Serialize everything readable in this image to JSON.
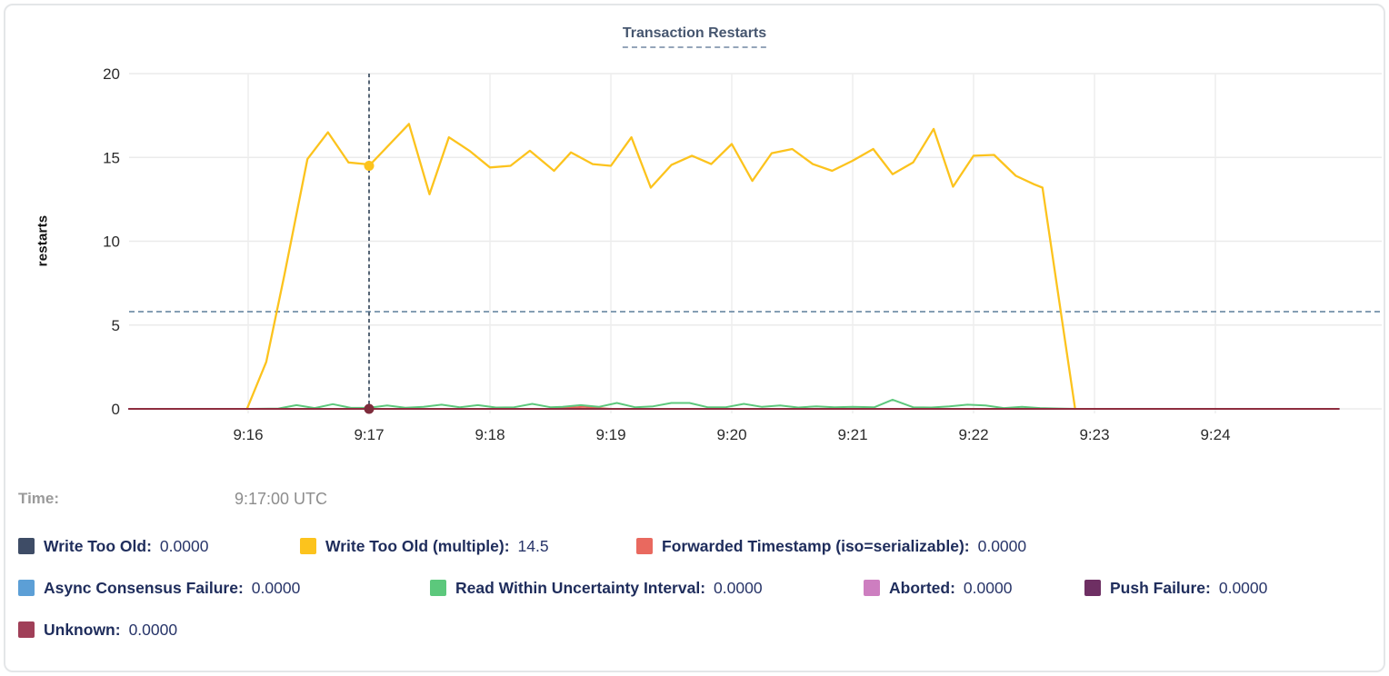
{
  "time": {
    "label": "Time:",
    "value": "9:17:00 UTC"
  },
  "chart_data": {
    "type": "line",
    "title": "Transaction Restarts",
    "ylabel": "restarts",
    "ylim": [
      0,
      20
    ],
    "yticks": [
      0,
      5,
      10,
      15,
      20
    ],
    "grid": true,
    "legend_position": "bottom",
    "x_axis": {
      "unit": "time (UTC)",
      "t_unit": "minutes after 9:15 UTC",
      "ticks": [
        {
          "t": 1,
          "label": "9:16"
        },
        {
          "t": 2,
          "label": "9:17"
        },
        {
          "t": 3,
          "label": "9:18"
        },
        {
          "t": 4,
          "label": "9:19"
        },
        {
          "t": 5,
          "label": "9:20"
        },
        {
          "t": 6,
          "label": "9:21"
        },
        {
          "t": 7,
          "label": "9:22"
        },
        {
          "t": 8,
          "label": "9:23"
        },
        {
          "t": 9,
          "label": "9:24"
        }
      ]
    },
    "threshold_line": {
      "value": 5.8,
      "orientation": "horizontal",
      "style": "dashed",
      "color": "#5d7e9c"
    },
    "crosshair": {
      "t": 2.0,
      "label": "9:17:00 UTC",
      "style": "dashed",
      "color": "#2e4156"
    },
    "hover_dots": [
      {
        "series": "Write Too Old (multiple)",
        "t": 2.0,
        "value": 14.5,
        "color": "#fcc31d"
      },
      {
        "series": "Unknown",
        "t": 2.0,
        "value": 0,
        "color": "#7e2c3c"
      }
    ],
    "series": [
      {
        "name": "Write Too Old",
        "label": "Write Too Old:",
        "value": "0.0000",
        "color": "#3e4c66",
        "row": 0,
        "points": [
          [
            0.015,
            0
          ],
          [
            10.02,
            0
          ]
        ]
      },
      {
        "name": "Write Too Old (multiple)",
        "label": "Write Too Old (multiple):",
        "value": "14.5",
        "color": "#fcc31d",
        "row": 0,
        "points": [
          [
            0.99,
            0
          ],
          [
            1.15,
            2.8
          ],
          [
            1.3,
            8.0
          ],
          [
            1.49,
            14.9
          ],
          [
            1.66,
            16.5
          ],
          [
            1.83,
            14.7
          ],
          [
            1.97,
            14.6
          ],
          [
            2.0,
            14.5
          ],
          [
            2.33,
            17.0
          ],
          [
            2.5,
            12.8
          ],
          [
            2.66,
            16.2
          ],
          [
            2.83,
            15.4
          ],
          [
            3.0,
            14.4
          ],
          [
            3.17,
            14.5
          ],
          [
            3.33,
            15.4
          ],
          [
            3.53,
            14.2
          ],
          [
            3.67,
            15.3
          ],
          [
            3.85,
            14.6
          ],
          [
            4.0,
            14.5
          ],
          [
            4.17,
            16.2
          ],
          [
            4.33,
            13.2
          ],
          [
            4.5,
            14.55
          ],
          [
            4.67,
            15.1
          ],
          [
            4.83,
            14.6
          ],
          [
            5.0,
            15.8
          ],
          [
            5.17,
            13.6
          ],
          [
            5.33,
            15.25
          ],
          [
            5.5,
            15.5
          ],
          [
            5.67,
            14.6
          ],
          [
            5.83,
            14.2
          ],
          [
            6.0,
            14.8
          ],
          [
            6.17,
            15.5
          ],
          [
            6.33,
            14.0
          ],
          [
            6.5,
            14.7
          ],
          [
            6.67,
            16.7
          ],
          [
            6.83,
            13.25
          ],
          [
            7.0,
            15.1
          ],
          [
            7.17,
            15.15
          ],
          [
            7.35,
            13.9
          ],
          [
            7.5,
            13.4
          ],
          [
            7.57,
            13.2
          ],
          [
            7.84,
            0
          ]
        ]
      },
      {
        "name": "Forwarded Timestamp (iso=serializable)",
        "label": "Forwarded Timestamp (iso=serializable):",
        "value": "0.0000",
        "color": "#e9695f",
        "row": 0,
        "points": [
          [
            3.5,
            0
          ],
          [
            3.65,
            0.08
          ],
          [
            3.78,
            0.12
          ],
          [
            3.9,
            0.05
          ],
          [
            4.0,
            0
          ]
        ]
      },
      {
        "name": "Async Consensus Failure",
        "label": "Async Consensus Failure:",
        "value": "0.0000",
        "color": "#5c9fd6",
        "row": 1,
        "points": [
          [
            0.015,
            0
          ],
          [
            10.02,
            0
          ]
        ]
      },
      {
        "name": "Read Within Uncertainty Interval",
        "label": "Read Within Uncertainty Interval:",
        "value": "0.0000",
        "color": "#5cc87c",
        "row": 1,
        "points": [
          [
            1.02,
            0
          ],
          [
            1.25,
            0.02
          ],
          [
            1.4,
            0.22
          ],
          [
            1.55,
            0.05
          ],
          [
            1.7,
            0.28
          ],
          [
            1.85,
            0.06
          ],
          [
            2.0,
            0.07
          ],
          [
            2.15,
            0.2
          ],
          [
            2.3,
            0.07
          ],
          [
            2.45,
            0.12
          ],
          [
            2.6,
            0.25
          ],
          [
            2.75,
            0.1
          ],
          [
            2.9,
            0.22
          ],
          [
            3.05,
            0.08
          ],
          [
            3.2,
            0.1
          ],
          [
            3.35,
            0.3
          ],
          [
            3.5,
            0.1
          ],
          [
            3.6,
            0.12
          ],
          [
            3.75,
            0.22
          ],
          [
            3.9,
            0.12
          ],
          [
            4.05,
            0.35
          ],
          [
            4.2,
            0.1
          ],
          [
            4.35,
            0.15
          ],
          [
            4.5,
            0.35
          ],
          [
            4.65,
            0.35
          ],
          [
            4.8,
            0.1
          ],
          [
            4.95,
            0.1
          ],
          [
            5.1,
            0.3
          ],
          [
            5.25,
            0.12
          ],
          [
            5.4,
            0.2
          ],
          [
            5.55,
            0.08
          ],
          [
            5.7,
            0.15
          ],
          [
            5.85,
            0.1
          ],
          [
            6.0,
            0.12
          ],
          [
            6.18,
            0.1
          ],
          [
            6.33,
            0.55
          ],
          [
            6.5,
            0.1
          ],
          [
            6.65,
            0.08
          ],
          [
            6.8,
            0.15
          ],
          [
            6.95,
            0.25
          ],
          [
            7.1,
            0.2
          ],
          [
            7.25,
            0.05
          ],
          [
            7.4,
            0.12
          ],
          [
            7.55,
            0.05
          ],
          [
            7.7,
            0.02
          ],
          [
            7.85,
            0
          ]
        ]
      },
      {
        "name": "Aborted",
        "label": "Aborted:",
        "value": "0.0000",
        "color": "#cd7ec0",
        "row": 1,
        "points": [
          [
            0.015,
            0
          ],
          [
            10.02,
            0
          ]
        ]
      },
      {
        "name": "Push Failure",
        "label": "Push Failure:",
        "value": "0.0000",
        "color": "#6e2f63",
        "row": 1,
        "points": [
          [
            0.015,
            0
          ],
          [
            10.02,
            0
          ]
        ]
      },
      {
        "name": "Unknown",
        "label": "Unknown:",
        "value": "0.0000",
        "color": "#a03f58",
        "line_color": "#8e2d3f",
        "row": 2,
        "points": [
          [
            0.015,
            0
          ],
          [
            10.02,
            0
          ]
        ]
      }
    ]
  }
}
